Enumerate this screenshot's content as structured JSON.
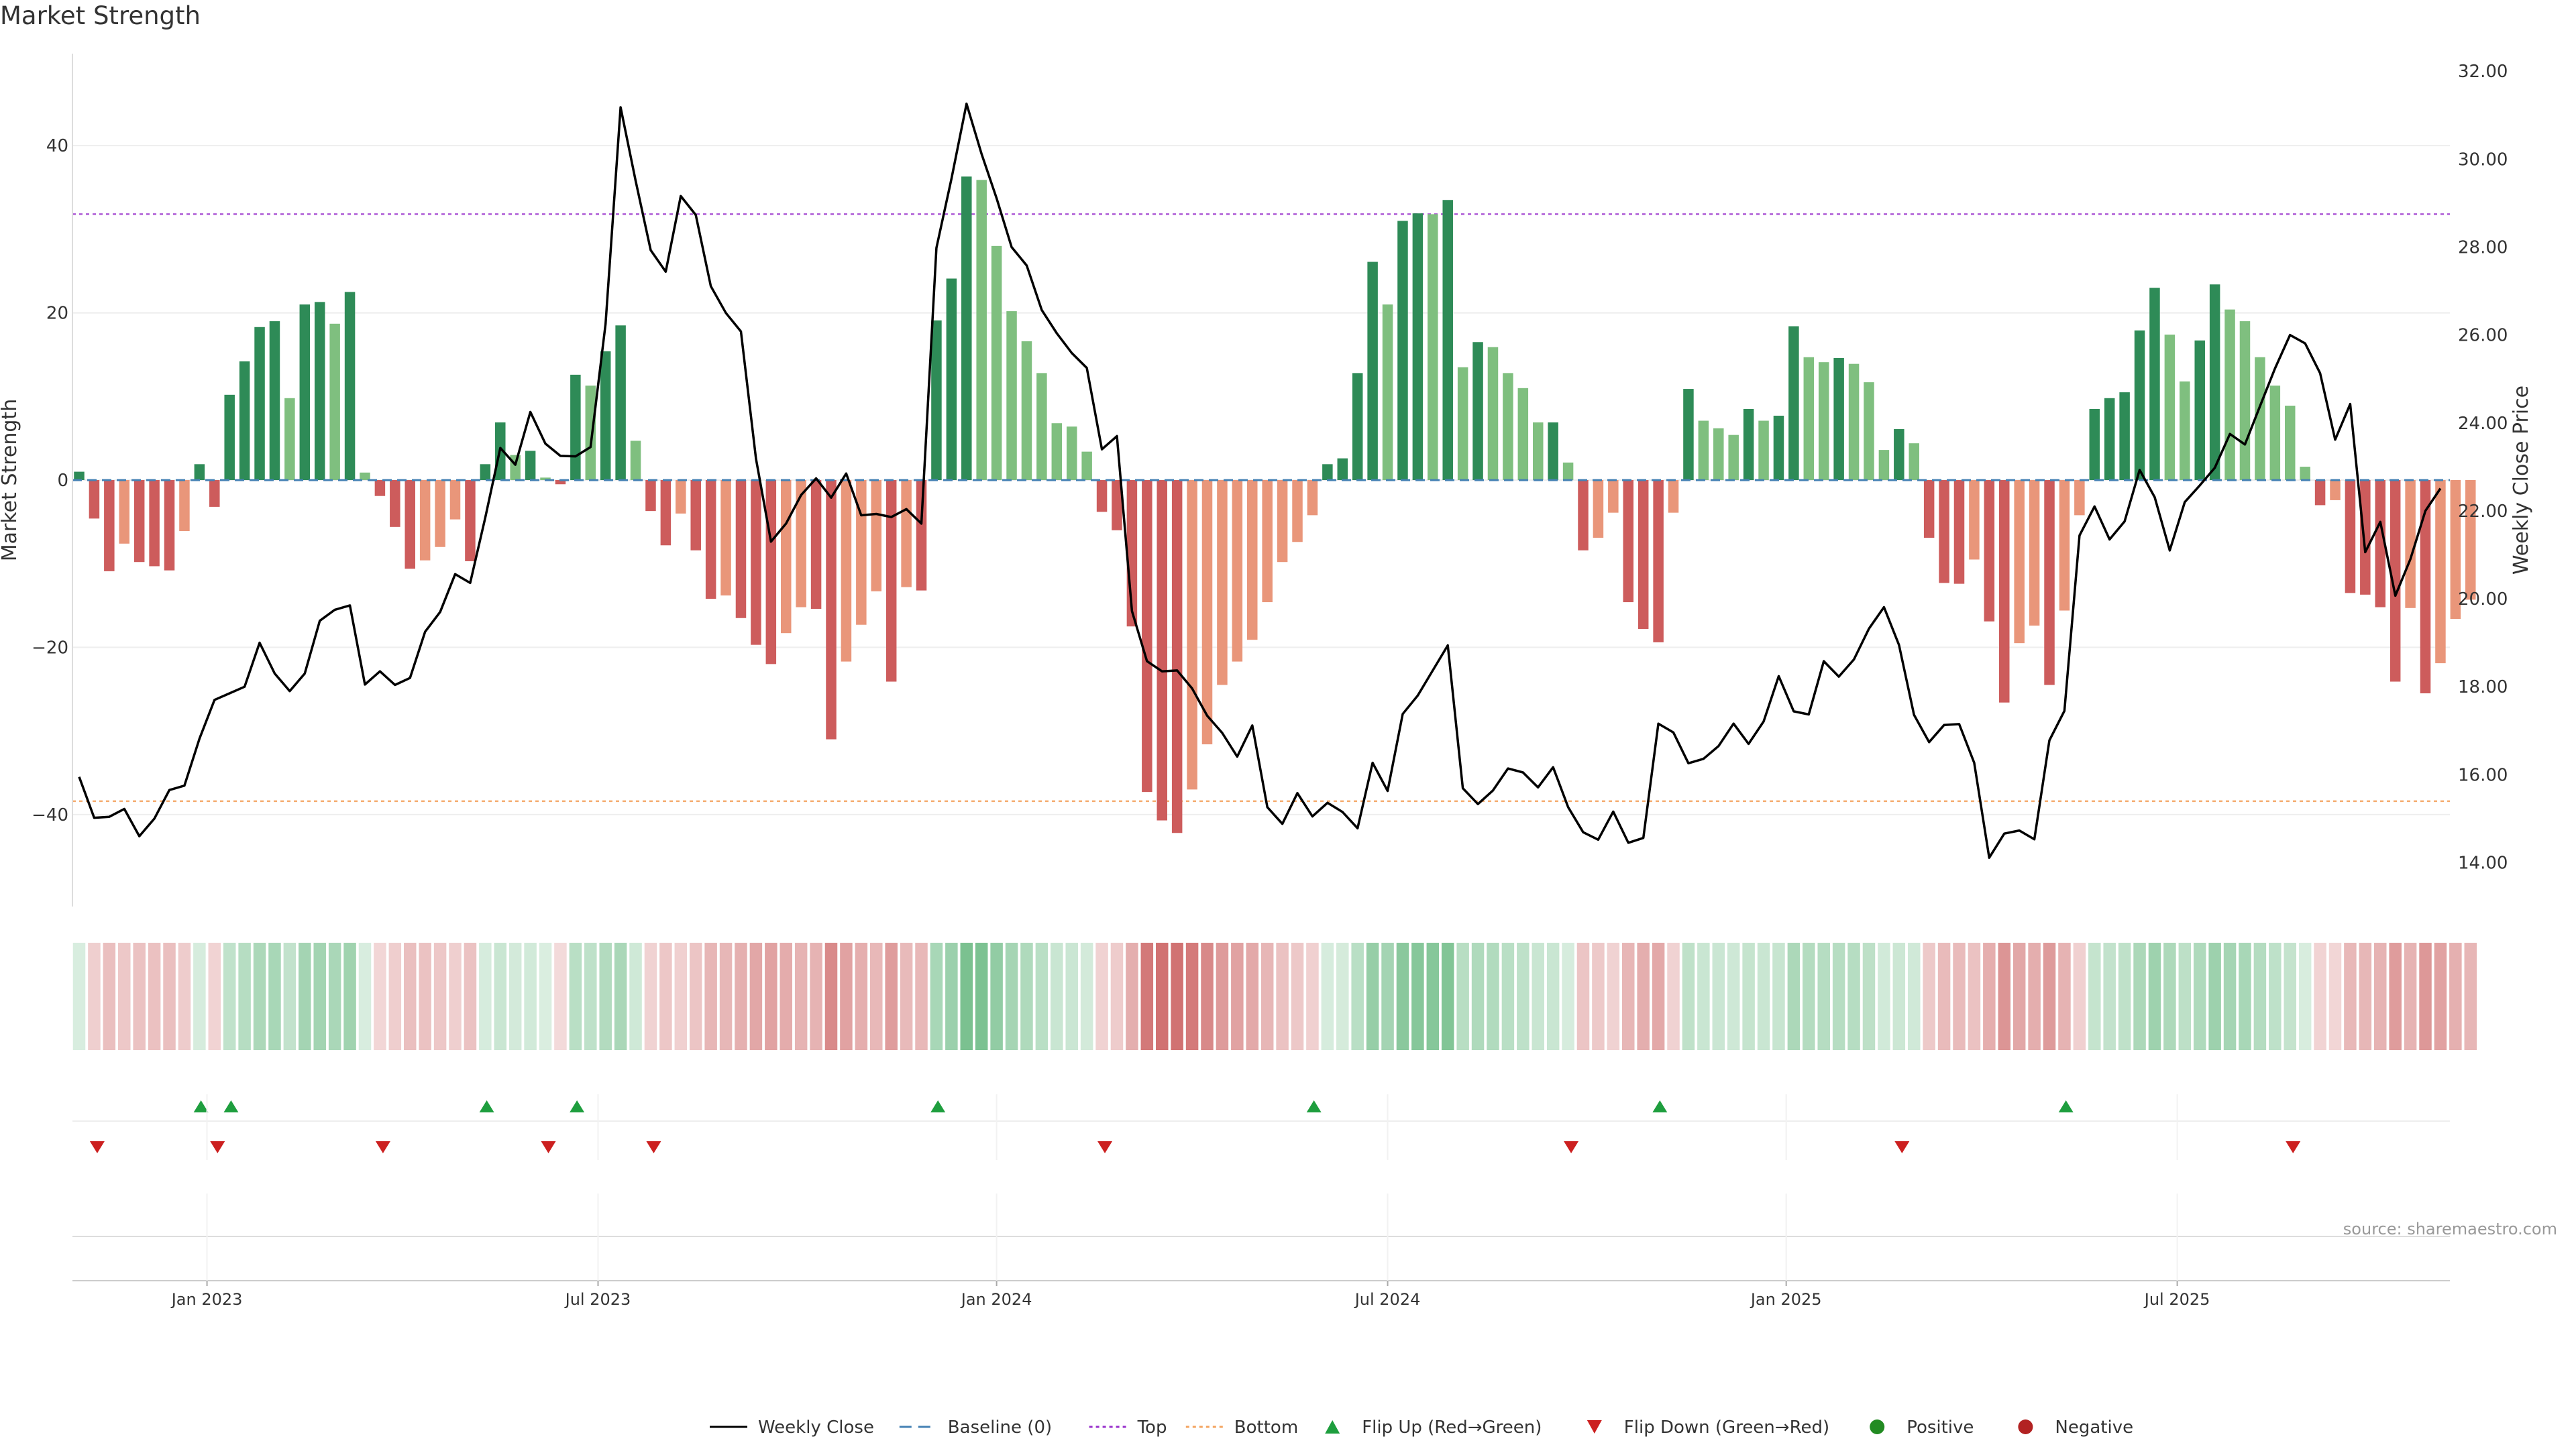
{
  "title": "Market Strength",
  "source": "source: sharemaestro.com",
  "chart_data": {
    "type": "bar",
    "title": "Market Strength",
    "ylabel_left": "Market Strength",
    "ylabel_right": "Weekly Close Price",
    "ylim_left": [
      -51,
      51
    ],
    "ylim_right": [
      13.0,
      32.4
    ],
    "left_ticks": [
      40,
      20,
      0,
      -20,
      -40
    ],
    "left_tick_labels": [
      "40",
      "20",
      "0",
      "−20",
      "−40"
    ],
    "right_ticks": [
      32,
      30,
      28,
      26,
      24,
      22,
      20,
      18,
      16,
      14
    ],
    "right_tick_labels": [
      "32.00",
      "30.00",
      "28.00",
      "26.00",
      "24.00",
      "22.00",
      "20.00",
      "18.00",
      "16.00",
      "14.00"
    ],
    "x_ticks": [
      {
        "label": "Jan 2023",
        "week": 8.5
      },
      {
        "label": "Jul 2023",
        "week": 34.5
      },
      {
        "label": "Jan 2024",
        "week": 61
      },
      {
        "label": "Jul 2024",
        "week": 87
      },
      {
        "label": "Jan 2025",
        "week": 113.5
      },
      {
        "label": "Jul 2025",
        "week": 139.5
      }
    ],
    "top_level": 31.8,
    "bottom_level": -38.4,
    "strength": [
      1,
      -4.6,
      -10.9,
      -7.6,
      -9.8,
      -10.3,
      -10.8,
      -6.1,
      1.9,
      -3.2,
      10.2,
      14.2,
      18.3,
      19,
      9.8,
      21,
      21.3,
      18.7,
      22.5,
      0.9,
      -1.9,
      -5.6,
      -10.6,
      -9.6,
      -8,
      -4.7,
      -9.7,
      1.9,
      6.9,
      3,
      3.5,
      0.3,
      -0.5,
      12.6,
      11.3,
      15.4,
      18.5,
      4.7,
      -3.7,
      -7.8,
      -4,
      -8.4,
      -14.2,
      -13.8,
      -16.5,
      -19.7,
      -22,
      -18.3,
      -15.2,
      -15.4,
      -31,
      -21.7,
      -17.3,
      -13.3,
      -24.1,
      -12.8,
      -13.2,
      19.1,
      24.1,
      36.3,
      35.9,
      28,
      20.2,
      16.6,
      12.8,
      6.8,
      6.4,
      3.4,
      -3.8,
      -6,
      -17.5,
      -37.3,
      -40.7,
      -42.2,
      -37,
      -31.6,
      -24.5,
      -21.7,
      -19.1,
      -14.6,
      -9.8,
      -7.4,
      -4.2,
      1.9,
      2.6,
      12.8,
      26.1,
      21,
      31,
      31.9,
      31.8,
      33.5,
      13.5,
      16.5,
      15.9,
      12.8,
      11,
      6.9,
      6.9,
      2.1,
      -8.4,
      -6.9,
      -3.9,
      -14.6,
      -17.8,
      -19.4,
      -3.9,
      10.9,
      7.1,
      6.2,
      5.4,
      8.5,
      7.1,
      7.7,
      18.4,
      14.7,
      14.1,
      14.6,
      13.9,
      11.7,
      3.6,
      6.1,
      4.4,
      -6.9,
      -12.3,
      -12.4,
      -9.5,
      -16.9,
      -26.6,
      -19.5,
      -17.4,
      -24.5,
      -15.6,
      -4.2,
      8.5,
      9.8,
      10.5,
      17.9,
      23,
      17.4,
      11.8,
      16.7,
      23.4,
      20.4,
      19,
      14.7,
      11.3,
      8.9,
      1.6,
      -3,
      -2.4,
      -13.5,
      -13.7,
      -15.2,
      -24.1,
      -15.3,
      -25.5,
      -21.9,
      -16.6,
      -14.3
    ],
    "weekly_close": [
      15.95,
      15.02,
      15.04,
      15.22,
      14.6,
      15.0,
      15.65,
      15.75,
      16.82,
      17.7,
      17.85,
      18.0,
      19.0,
      18.3,
      17.9,
      18.3,
      19.5,
      19.75,
      19.85,
      18.05,
      18.35,
      18.04,
      18.2,
      19.25,
      19.7,
      20.56,
      20.36,
      21.84,
      23.43,
      23.05,
      24.25,
      23.53,
      23.25,
      23.24,
      23.45,
      26.25,
      31.18,
      29.51,
      27.93,
      27.44,
      29.16,
      28.73,
      27.11,
      26.5,
      26.08,
      23.19,
      21.3,
      21.71,
      22.36,
      22.74,
      22.3,
      22.85,
      21.9,
      21.93,
      21.86,
      22.04,
      21.71,
      27.98,
      29.56,
      31.26,
      30.12,
      29.11,
      28.0,
      27.58,
      26.57,
      26.04,
      25.59,
      25.25,
      23.4,
      23.7,
      19.72,
      18.58,
      18.35,
      18.37,
      17.96,
      17.34,
      16.95,
      16.41,
      17.12,
      15.26,
      14.88,
      15.58,
      15.05,
      15.36,
      15.15,
      14.78,
      16.27,
      15.63,
      17.38,
      17.8,
      18.37,
      18.94,
      15.69,
      15.33,
      15.64,
      16.14,
      16.05,
      15.71,
      16.17,
      15.26,
      14.69,
      14.52,
      15.16,
      14.45,
      14.56,
      17.16,
      16.96,
      16.26,
      16.36,
      16.65,
      17.16,
      16.7,
      17.21,
      18.24,
      17.44,
      17.37,
      18.58,
      18.23,
      18.62,
      19.32,
      19.81,
      18.95,
      17.36,
      16.74,
      17.13,
      17.15,
      16.27,
      14.11,
      14.66,
      14.73,
      14.53,
      16.78,
      17.45,
      21.44,
      22.1,
      21.35,
      21.76,
      22.93,
      22.31,
      21.1,
      22.2,
      22.58,
      22.98,
      23.75,
      23.51,
      24.38,
      25.24,
      26.0,
      25.81,
      25.13,
      23.62,
      24.43,
      21.06,
      21.75,
      20.07,
      20.9,
      22.0,
      22.51
    ],
    "flip_up_weeks": [
      8.1,
      10.1,
      27.1,
      33.1,
      57.1,
      82.1,
      105.1,
      132.1
    ],
    "flip_down_weeks": [
      1.2,
      9.2,
      20.2,
      31.2,
      38.2,
      68.2,
      99.2,
      121.2,
      147.2
    ],
    "legend": [
      "Weekly Close",
      "Baseline (0)",
      "Top",
      "Bottom",
      "Flip Up (Red→Green)",
      "Flip Down (Green→Red)",
      "Positive",
      "Negative"
    ],
    "colors": {
      "green_strong": "#2e8b57",
      "green_light": "#7fbf7f",
      "red_strong": "#cd5c5c",
      "red_light": "#e9967a",
      "price_line": "#000000",
      "baseline": "#4682b4",
      "top": "#9932cc",
      "bottom": "#f4a460",
      "flip_up": "#1e9e3e",
      "flip_down": "#cc2020",
      "positive_dot": "#228b22",
      "negative_dot": "#b22222"
    }
  }
}
